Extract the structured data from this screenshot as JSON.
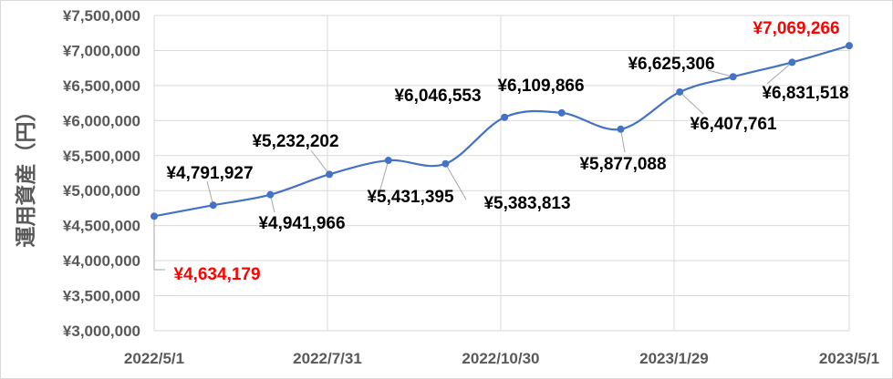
{
  "chart_data": {
    "type": "line",
    "title": "",
    "xlabel": "",
    "ylabel": "運用資産（円）",
    "x": [
      "2022/5/1",
      "2022/6/1",
      "2022/7/1",
      "2022/8/1",
      "2022/9/1",
      "2022/10/1",
      "2022/11/1",
      "2022/12/1",
      "2023/1/1",
      "2023/2/1",
      "2023/3/1",
      "2023/4/1",
      "2023/5/1"
    ],
    "values": [
      4634179,
      4791927,
      4941966,
      5232202,
      5431395,
      5383813,
      6046553,
      6109866,
      5877088,
      6407761,
      6625306,
      6831518,
      7069266
    ],
    "data_labels": [
      "¥4,634,179",
      "¥4,791,927",
      "¥4,941,966",
      "¥5,232,202",
      "¥5,431,395",
      "¥5,383,813",
      "¥6,046,553",
      "¥6,109,866",
      "¥5,877,088",
      "¥6,407,761",
      "¥6,625,306",
      "¥6,831,518",
      "¥7,069,266"
    ],
    "highlighted_labels": [
      0,
      12
    ],
    "ylim": [
      3000000,
      7500000
    ],
    "y_ticks": [
      "¥3,000,000",
      "¥3,500,000",
      "¥4,000,000",
      "¥4,500,000",
      "¥5,000,000",
      "¥5,500,000",
      "¥6,000,000",
      "¥6,500,000",
      "¥7,000,000",
      "¥7,500,000"
    ],
    "x_ticks": [
      "2022/5/1",
      "2022/7/31",
      "2022/10/30",
      "2023/1/29",
      "2023/5/1"
    ],
    "x_range": [
      "2022/5/1",
      "2023/5/1"
    ],
    "smooth": true,
    "grid": true,
    "legend": "none",
    "colors": {
      "line": "#4472c4",
      "highlight": "#ff0000",
      "label": "#000000",
      "axis_text": "#595959",
      "grid": "#d9d9d9"
    }
  }
}
